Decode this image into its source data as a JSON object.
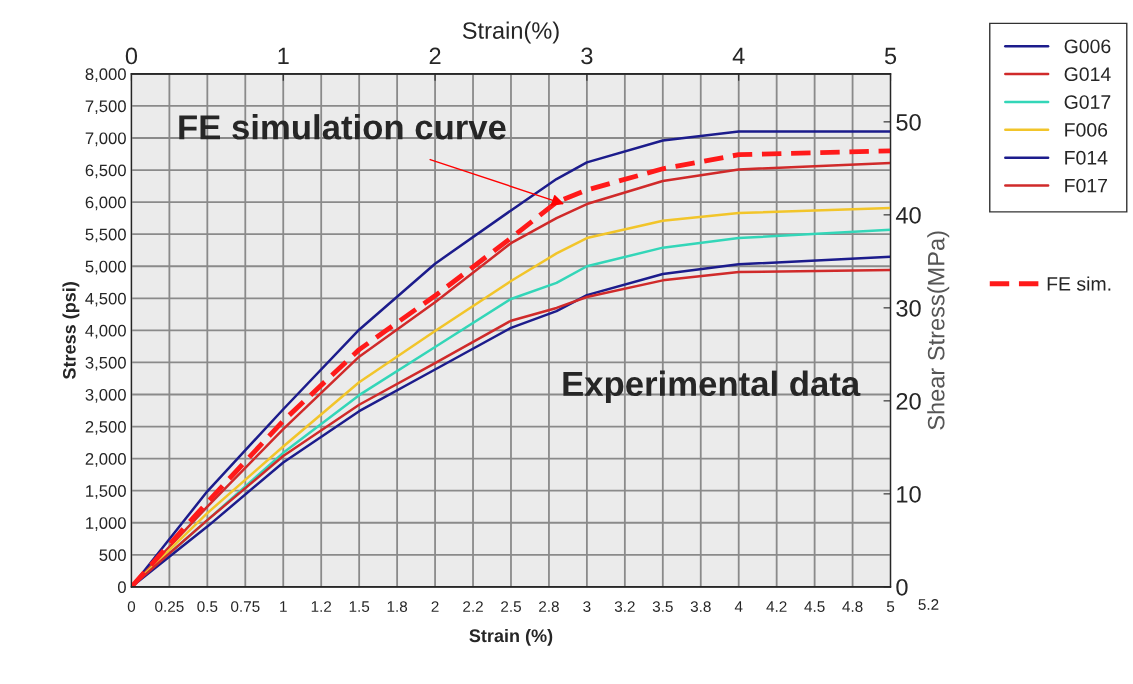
{
  "chart_data": {
    "type": "line",
    "xlabel": "Strain (%)",
    "ylabel": "Stress (psi)",
    "x2label": "Strain(%)",
    "y2label": "Shear Stress(MPa)",
    "xlim": [
      0,
      5
    ],
    "xticks": [
      0,
      0.25,
      0.5,
      0.75,
      1,
      {
        "value": 1.25,
        "label": "1.2"
      },
      1.5,
      {
        "value": 1.75,
        "label": "1.8"
      },
      2,
      {
        "value": 2.25,
        "label": "2.2"
      },
      2.5,
      {
        "value": 2.75,
        "label": "2.8"
      },
      3,
      {
        "value": 3.25,
        "label": "3.2"
      },
      3.5,
      {
        "value": 3.75,
        "label": "3.8"
      },
      4,
      {
        "value": 4.25,
        "label": "4.2"
      },
      4.5,
      {
        "value": 4.75,
        "label": "4.8"
      },
      5
    ],
    "x2lim": [
      0,
      5
    ],
    "x2ticks": [
      0,
      1,
      2,
      3,
      4,
      5
    ],
    "ylim": [
      0,
      8000
    ],
    "yticks": [
      0,
      500,
      {
        "value": 1000,
        "label": "1,000"
      },
      {
        "value": 1500,
        "label": "1,500"
      },
      {
        "value": 2000,
        "label": "2,000"
      },
      {
        "value": 2500,
        "label": "2,500"
      },
      {
        "value": 3000,
        "label": "3,000"
      },
      {
        "value": 3500,
        "label": "3,500"
      },
      {
        "value": 4000,
        "label": "4,000"
      },
      {
        "value": 4500,
        "label": "4,500"
      },
      {
        "value": 5000,
        "label": "5,000"
      },
      {
        "value": 5500,
        "label": "5,500"
      },
      {
        "value": 6000,
        "label": "6,000"
      },
      {
        "value": 6500,
        "label": "6,500"
      },
      {
        "value": 7000,
        "label": "7,000"
      },
      {
        "value": 7500,
        "label": "7,500"
      },
      {
        "value": 8000,
        "label": "8,000"
      }
    ],
    "y2lim": [
      0,
      55.16
    ],
    "y2ticks": [
      0,
      10,
      20,
      30,
      40,
      50
    ],
    "grid": true,
    "legend": "right",
    "marker": "none",
    "series": [
      {
        "name": "G006",
        "color": "#1c1c8c",
        "line_style": "solid",
        "x": [
          0,
          0.5,
          1,
          1.5,
          2,
          2.5,
          2.8,
          3,
          3.5,
          4,
          5
        ],
        "values": [
          0,
          1490,
          2770,
          4010,
          5040,
          5870,
          6360,
          6620,
          6960,
          7100,
          7100
        ]
      },
      {
        "name": "G014",
        "color": "#d02a2a",
        "line_style": "solid",
        "x": [
          0,
          0.5,
          1,
          1.5,
          2,
          2.5,
          2.8,
          3,
          3.5,
          4,
          5
        ],
        "values": [
          0,
          1250,
          2460,
          3590,
          4440,
          5360,
          5750,
          5970,
          6330,
          6510,
          6610
        ]
      },
      {
        "name": "G017",
        "color": "#33d6b8",
        "line_style": "solid",
        "x": [
          0,
          0.5,
          1,
          1.5,
          2,
          2.5,
          2.8,
          3,
          3.5,
          4,
          5
        ],
        "values": [
          0,
          1040,
          2090,
          2990,
          3740,
          4490,
          4740,
          5000,
          5290,
          5440,
          5570
        ]
      },
      {
        "name": "F006",
        "color": "#f2c52a",
        "line_style": "solid",
        "x": [
          0,
          0.5,
          1,
          1.5,
          2,
          2.5,
          2.8,
          3,
          3.5,
          4,
          5
        ],
        "values": [
          0,
          1150,
          2190,
          3190,
          3990,
          4770,
          5200,
          5440,
          5710,
          5830,
          5910
        ]
      },
      {
        "name": "F014",
        "color": "#1c1c8c",
        "line_style": "solid",
        "x": [
          0,
          0.5,
          1,
          1.5,
          2,
          2.5,
          2.8,
          3,
          3.5,
          4,
          5
        ],
        "values": [
          0,
          940,
          1940,
          2740,
          3390,
          4040,
          4300,
          4550,
          4880,
          5030,
          5150
        ]
      },
      {
        "name": "F017",
        "color": "#d02a2a",
        "line_style": "solid",
        "x": [
          0,
          0.5,
          1,
          1.5,
          2,
          2.5,
          2.8,
          3,
          3.5,
          4,
          5
        ],
        "values": [
          0,
          1040,
          2040,
          2840,
          3490,
          4150,
          4350,
          4520,
          4780,
          4910,
          4940
        ]
      },
      {
        "name": "FE sim.",
        "color": "#ff1a1a",
        "line_style": "dashed",
        "x": [
          0,
          0.5,
          1,
          1.5,
          2,
          2.5,
          2.8,
          3,
          3.5,
          4,
          5
        ],
        "values": [
          0,
          1320,
          2590,
          3700,
          4540,
          5440,
          6000,
          6190,
          6520,
          6740,
          6800
        ]
      }
    ],
    "annotations": [
      {
        "text": "FE simulation curve",
        "x": 2.85,
        "y": 5970
      },
      "Experimental data",
      "5.2"
    ]
  }
}
